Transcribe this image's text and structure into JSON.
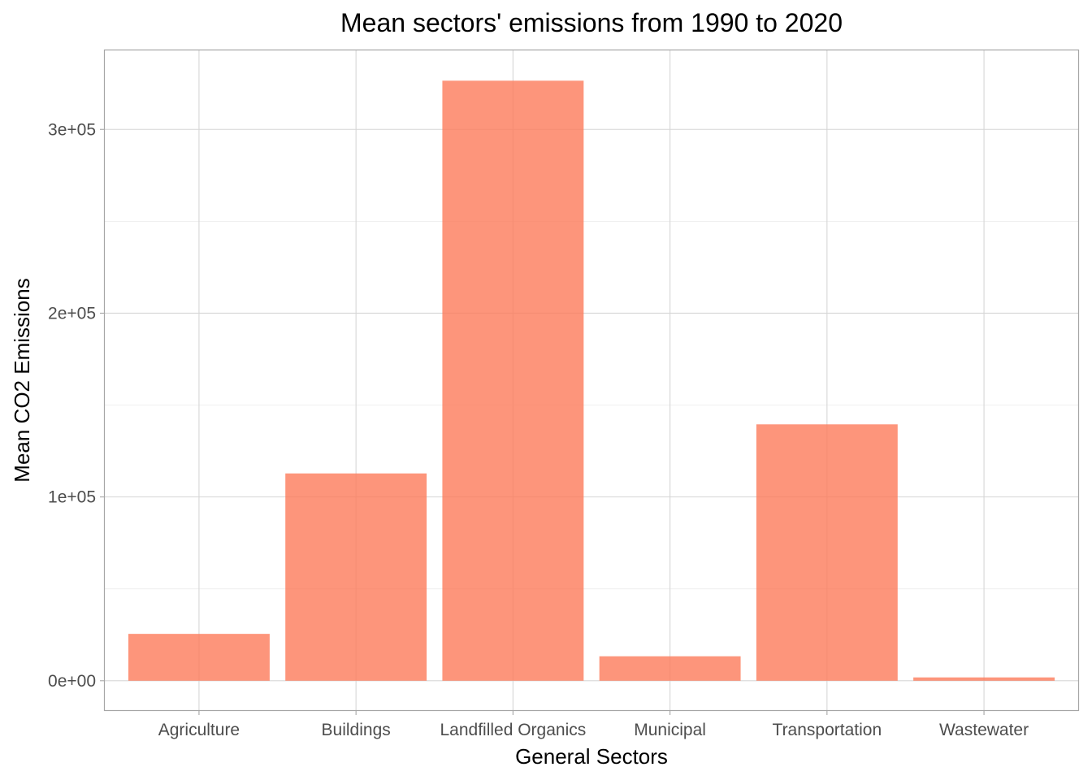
{
  "chart_data": {
    "type": "bar",
    "title": "Mean sectors' emissions from 1990 to 2020",
    "xlabel": "General Sectors",
    "ylabel": "Mean CO2 Emissions",
    "categories": [
      "Agriculture",
      "Buildings",
      "Landfilled Organics",
      "Municipal",
      "Transportation",
      "Wastewater"
    ],
    "values": [
      25500,
      112800,
      326500,
      13300,
      139500,
      1800
    ],
    "ylim": [
      -16000,
      343000
    ],
    "yticks": [
      0,
      100000,
      200000,
      300000
    ],
    "ytick_labels": [
      "0e+00",
      "1e+05",
      "2e+05",
      "3e+05"
    ],
    "grid": true,
    "legend": "none",
    "colors": {
      "bar": "#fc7a5a",
      "panel_border": "#a6a6a6",
      "grid_major": "#d6d6d6",
      "grid_minor": "#ebebeb"
    }
  }
}
